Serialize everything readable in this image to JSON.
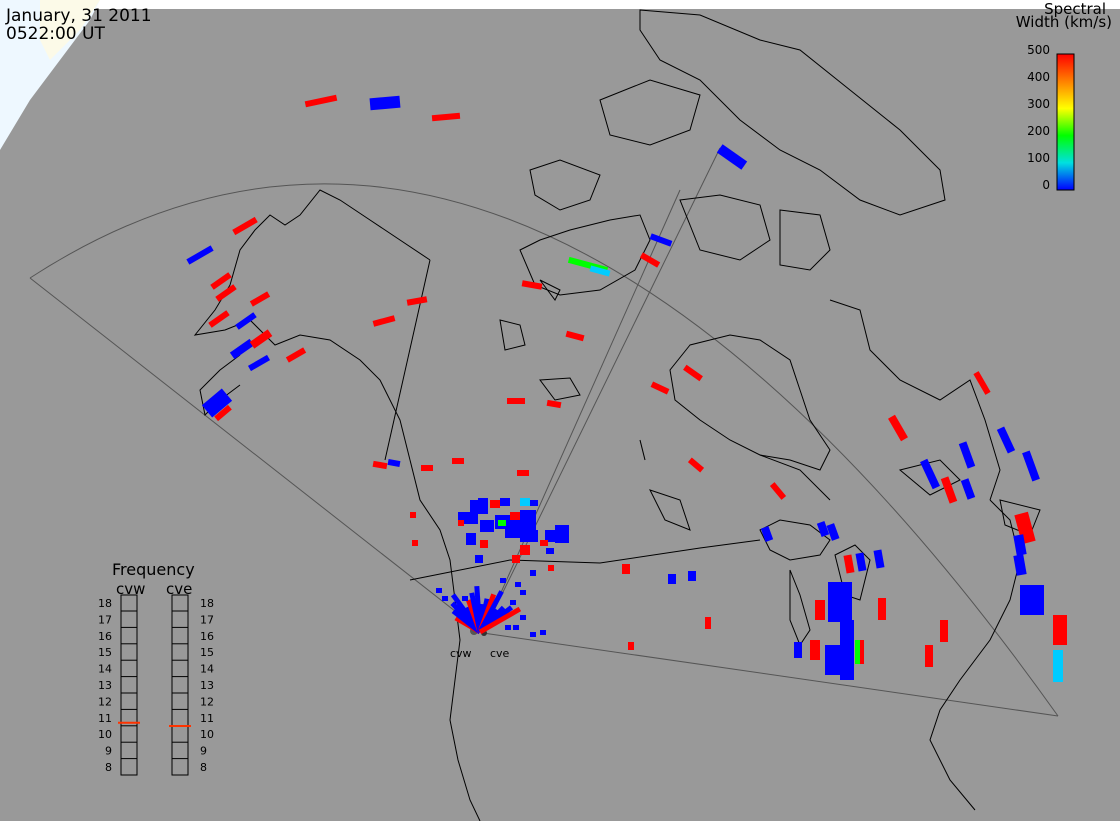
{
  "header": {
    "date": "January, 31 2011",
    "time": "0522:00 UT"
  },
  "colorbar": {
    "title_line1": "Spectral",
    "title_line2": "Width (km/s)",
    "ticks": [
      "500",
      "400",
      "300",
      "200",
      "100",
      "0"
    ],
    "range": [
      0,
      500
    ],
    "colors": [
      "#0000ff",
      "#00e0e0",
      "#00ff00",
      "#ffff00",
      "#ff8000",
      "#ff0000"
    ]
  },
  "frequency_panel": {
    "title": "Frequency",
    "radars": [
      {
        "name": "cvw",
        "level_mhz": 10.7,
        "indicator_color": "#ff3300"
      },
      {
        "name": "cve",
        "level_mhz": 10.5,
        "indicator_color": "#ff3300"
      }
    ],
    "ticks": [
      "18",
      "17",
      "16",
      "15",
      "14",
      "13",
      "12",
      "11",
      "10",
      "9",
      "8"
    ]
  },
  "radar_sites": [
    {
      "label": "cvw"
    },
    {
      "label": "cve"
    }
  ],
  "colors": {
    "background": "#999999",
    "outline": "#000000",
    "fov": "#555555",
    "low_width": "#0000ff",
    "high_width": "#ff0000",
    "ice": "#eef8ff"
  }
}
